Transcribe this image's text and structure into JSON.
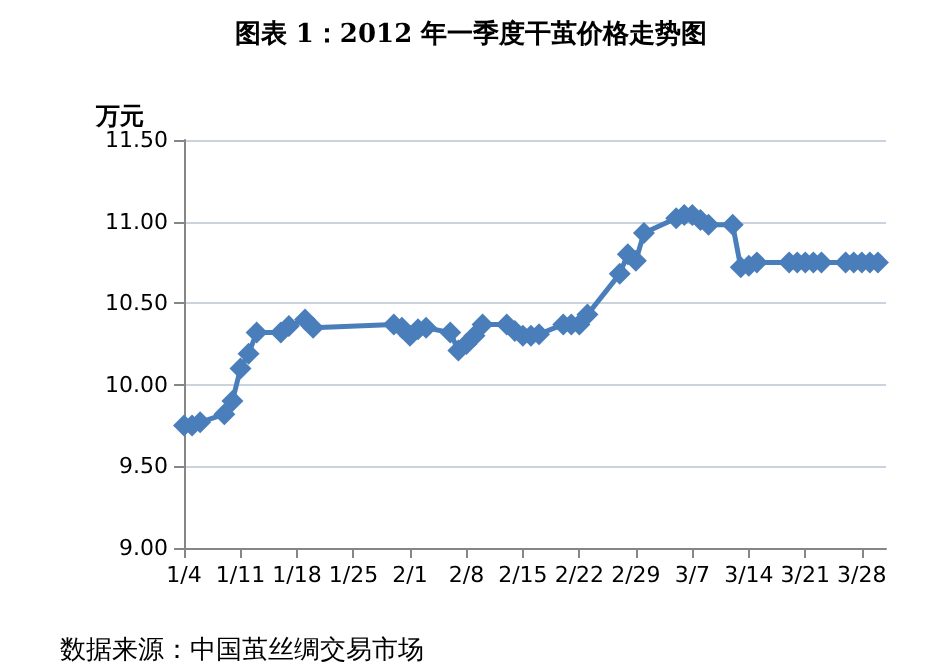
{
  "chart_data": {
    "type": "line",
    "title": "图表 1：2012 年一季度干茧价格走势图",
    "ylabel": "万元",
    "annotations": [
      "数据来源：中国茧丝绸交易市场"
    ],
    "x": [
      "2012-01-04",
      "2012-01-05",
      "2012-01-06",
      "2012-01-09",
      "2012-01-10",
      "2012-01-11",
      "2012-01-12",
      "2012-01-13",
      "2012-01-16",
      "2012-01-17",
      "2012-01-19",
      "2012-01-20",
      "2012-01-30",
      "2012-01-31",
      "2012-02-01",
      "2012-02-02",
      "2012-02-03",
      "2012-02-06",
      "2012-02-07",
      "2012-02-08",
      "2012-02-09",
      "2012-02-10",
      "2012-02-13",
      "2012-02-14",
      "2012-02-15",
      "2012-02-16",
      "2012-02-17",
      "2012-02-20",
      "2012-02-21",
      "2012-02-22",
      "2012-02-23",
      "2012-02-27",
      "2012-02-28",
      "2012-02-29",
      "2012-03-01",
      "2012-03-05",
      "2012-03-06",
      "2012-03-07",
      "2012-03-08",
      "2012-03-09",
      "2012-03-12",
      "2012-03-13",
      "2012-03-14",
      "2012-03-15",
      "2012-03-19",
      "2012-03-20",
      "2012-03-21",
      "2012-03-22",
      "2012-03-23",
      "2012-03-26",
      "2012-03-27",
      "2012-03-28",
      "2012-03-29",
      "2012-03-30"
    ],
    "series": [
      {
        "color": "#4a7ebb",
        "values": [
          9.75,
          9.75,
          9.77,
          9.82,
          9.9,
          10.1,
          10.19,
          10.32,
          10.32,
          10.36,
          10.4,
          10.35,
          10.37,
          10.35,
          10.3,
          10.34,
          10.35,
          10.32,
          10.21,
          10.25,
          10.3,
          10.37,
          10.37,
          10.33,
          10.3,
          10.3,
          10.31,
          10.37,
          10.37,
          10.37,
          10.43,
          10.68,
          10.8,
          10.76,
          10.93,
          11.02,
          11.04,
          11.04,
          11.01,
          10.98,
          10.98,
          10.72,
          10.73,
          10.75,
          10.75,
          10.75,
          10.75,
          10.75,
          10.75,
          10.75,
          10.75,
          10.75,
          10.75,
          10.75
        ]
      }
    ],
    "xlim": [
      "2012-01-04",
      "2012-03-31"
    ],
    "xticks": [
      {
        "value": "2012-01-04",
        "label": "1/4"
      },
      {
        "value": "2012-01-11",
        "label": "1/11"
      },
      {
        "value": "2012-01-18",
        "label": "1/18"
      },
      {
        "value": "2012-01-25",
        "label": "1/25"
      },
      {
        "value": "2012-02-01",
        "label": "2/1"
      },
      {
        "value": "2012-02-08",
        "label": "2/8"
      },
      {
        "value": "2012-02-15",
        "label": "2/15"
      },
      {
        "value": "2012-02-22",
        "label": "2/22"
      },
      {
        "value": "2012-02-29",
        "label": "2/29"
      },
      {
        "value": "2012-03-07",
        "label": "3/7"
      },
      {
        "value": "2012-03-14",
        "label": "3/14"
      },
      {
        "value": "2012-03-21",
        "label": "3/21"
      },
      {
        "value": "2012-03-28",
        "label": "3/28"
      }
    ],
    "ylim": [
      9,
      11.5
    ],
    "yticks": [
      {
        "value": 9,
        "label": "9.00"
      },
      {
        "value": 9.5,
        "label": "9.50"
      },
      {
        "value": 10,
        "label": "10.00"
      },
      {
        "value": 10.5,
        "label": "10.50"
      },
      {
        "value": 11,
        "label": "11.00"
      },
      {
        "value": 11.5,
        "label": "11.50"
      }
    ],
    "grid": "y",
    "marker": "diamond",
    "line_style": "solid"
  }
}
